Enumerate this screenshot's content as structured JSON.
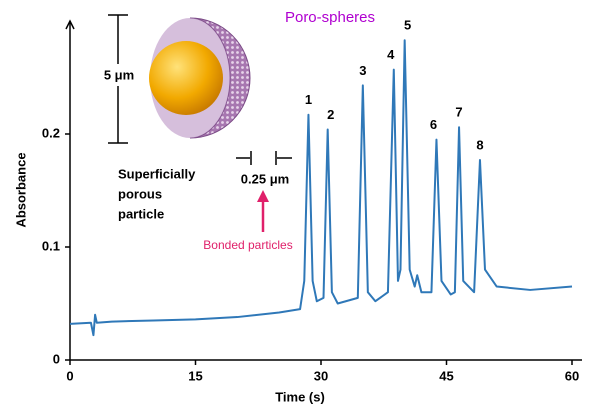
{
  "chart_data": {
    "type": "line",
    "title": "Poro-spheres",
    "x_label": "Time (s)",
    "y_label": "Absorbance",
    "xlim": [
      0,
      60
    ],
    "ylim": [
      0,
      0.3
    ],
    "xticks": [
      0,
      15,
      30,
      45,
      60
    ],
    "yticks": [
      0,
      0.1,
      0.2
    ],
    "grid": false,
    "series": [
      {
        "color": "#2f78b8",
        "x": [
          0,
          2.5,
          2.8,
          3.0,
          3.2,
          5,
          10,
          15,
          20,
          25,
          27.5,
          28,
          28.5,
          29,
          29.5,
          30.3,
          30.8,
          31.3,
          32,
          34.4,
          35,
          35.6,
          36.5,
          38,
          38.7,
          39.2,
          39.5,
          40,
          40.6,
          41.2,
          41.5,
          42,
          43.2,
          43.8,
          44.4,
          45.5,
          46,
          46.5,
          47,
          48.3,
          49,
          49.6,
          51,
          55,
          60
        ],
        "values": [
          0.032,
          0.033,
          0.022,
          0.04,
          0.033,
          0.034,
          0.035,
          0.036,
          0.038,
          0.042,
          0.045,
          0.07,
          0.217,
          0.07,
          0.052,
          0.055,
          0.204,
          0.06,
          0.05,
          0.055,
          0.243,
          0.06,
          0.052,
          0.06,
          0.257,
          0.07,
          0.08,
          0.283,
          0.08,
          0.065,
          0.075,
          0.06,
          0.06,
          0.195,
          0.07,
          0.058,
          0.06,
          0.206,
          0.07,
          0.06,
          0.177,
          0.08,
          0.065,
          0.062,
          0.065
        ]
      }
    ],
    "peak_labels": [
      "1",
      "2",
      "3",
      "4",
      "5",
      "6",
      "7",
      "8"
    ],
    "annotations": {
      "diameter": "5 μm",
      "particle_label": [
        "Superficially",
        "porous",
        "particle"
      ],
      "shell_thickness": "0.25 μm",
      "bonded_label": "Bonded particles"
    }
  }
}
